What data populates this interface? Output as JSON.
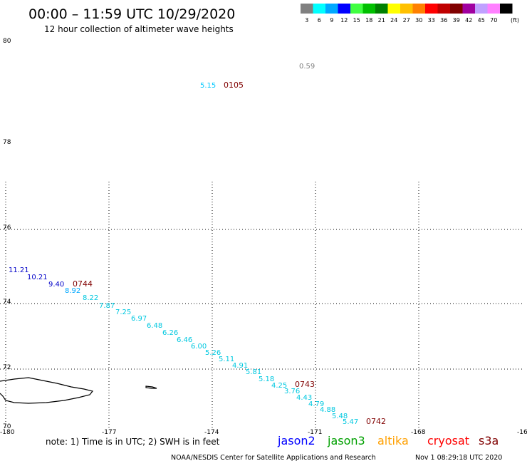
{
  "header": {
    "title": "00:00 – 11:59 UTC 10/29/2020",
    "subtitle": "12 hour collection of altimeter wave heights"
  },
  "legend": {
    "unit": "(ft)",
    "bins": [
      {
        "label": "3",
        "color": "#808080"
      },
      {
        "label": "6",
        "color": "#00ffff"
      },
      {
        "label": "9",
        "color": "#00a8ff"
      },
      {
        "label": "12",
        "color": "#0000ff"
      },
      {
        "label": "15",
        "color": "#40ff40"
      },
      {
        "label": "18",
        "color": "#00c000"
      },
      {
        "label": "21",
        "color": "#008000"
      },
      {
        "label": "24",
        "color": "#ffff00"
      },
      {
        "label": "27",
        "color": "#ffc000"
      },
      {
        "label": "30",
        "color": "#ff8000"
      },
      {
        "label": "33",
        "color": "#ff0000"
      },
      {
        "label": "36",
        "color": "#c00000"
      },
      {
        "label": "39",
        "color": "#800000"
      },
      {
        "label": "42",
        "color": "#a000a0"
      },
      {
        "label": "45",
        "color": "#c0a0ff"
      },
      {
        "label": "70",
        "color": "#ff80ff"
      },
      {
        "label": "",
        "color": "#000000"
      }
    ]
  },
  "map": {
    "lon_ticks": [
      "-180",
      "-177",
      "-174",
      "-171",
      "-168",
      "-16"
    ],
    "lat_ticks": [
      "80",
      "78",
      "76",
      "74",
      "72",
      "70"
    ]
  },
  "track_times": [
    "0105",
    "0744",
    "0743",
    "0742"
  ],
  "wave_heights": [
    {
      "value": "0.59",
      "color": "#808080"
    },
    {
      "value": "5.15",
      "color": "#00c8ff"
    },
    {
      "value": "11.21",
      "color": "#0000c8"
    },
    {
      "value": "10.21",
      "color": "#0000c8"
    },
    {
      "value": "9.40",
      "color": "#0000c8"
    },
    {
      "value": "8.92",
      "color": "#00a8ff"
    },
    {
      "value": "8.22",
      "color": "#00c8e0"
    },
    {
      "value": "7.87",
      "color": "#00c8e0"
    },
    {
      "value": "7.25",
      "color": "#00c8e0"
    },
    {
      "value": "6.97",
      "color": "#00c8e0"
    },
    {
      "value": "6.48",
      "color": "#00c8e0"
    },
    {
      "value": "6.26",
      "color": "#00c8e0"
    },
    {
      "value": "6.46",
      "color": "#00c8e0"
    },
    {
      "value": "6.00",
      "color": "#00c8e0"
    },
    {
      "value": "5.26",
      "color": "#00c8e0"
    },
    {
      "value": "5.11",
      "color": "#00c8e0"
    },
    {
      "value": "4.91",
      "color": "#00c8e0"
    },
    {
      "value": "5.81",
      "color": "#00c8e0"
    },
    {
      "value": "5.18",
      "color": "#00c8e0"
    },
    {
      "value": "4.25",
      "color": "#00c8e0"
    },
    {
      "value": "3.76",
      "color": "#00c8e0"
    },
    {
      "value": "4.43",
      "color": "#00c8e0"
    },
    {
      "value": "4.79",
      "color": "#00c8e0"
    },
    {
      "value": "4.88",
      "color": "#00c8e0"
    },
    {
      "value": "5.48",
      "color": "#00c8e0"
    },
    {
      "value": "5.47",
      "color": "#00c8e0"
    }
  ],
  "footer": {
    "note": "note:  1)  Time is in UTC;  2)  SWH is in feet",
    "satellites": [
      {
        "name": "jason2",
        "color": "#0000ff"
      },
      {
        "name": "jason3",
        "color": "#00a000"
      },
      {
        "name": "altika",
        "color": "#ffa000"
      },
      {
        "name": "cryosat",
        "color": "#ff0000"
      },
      {
        "name": "s3a",
        "color": "#800000"
      }
    ],
    "credit": "NOAA/NESDIS Center for Satellite Applications and Research",
    "generated": "Nov  1 08:29:18 UTC 2020"
  }
}
